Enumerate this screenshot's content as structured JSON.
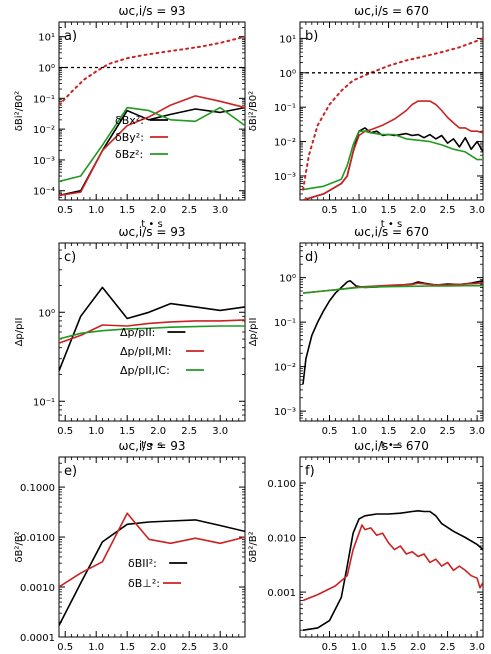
{
  "chart_data": [
    {
      "panel": "a",
      "panel_label": "a)",
      "type": "line",
      "title": "ωc,i/s = 93",
      "xlabel": "t • s",
      "ylabel": "δBi²/B0²",
      "xlim": [
        0.4,
        3.4
      ],
      "ylim": [
        5e-05,
        30
      ],
      "y_log": true,
      "xticks": [
        "0.5",
        "1.0",
        "1.5",
        "2.0",
        "2.5",
        "3.0"
      ],
      "yticks": [
        "10⁻⁴",
        "10⁻³",
        "10⁻²",
        "10⁻¹",
        "10⁰",
        "10¹"
      ],
      "legend": [
        "δBx²:",
        "δBy²:",
        "δBz²:"
      ],
      "series": [
        {
          "name": "δBx²",
          "color": "#000000",
          "x": [
            0.4,
            0.75,
            1.1,
            1.5,
            1.85,
            2.2,
            2.6,
            3.0,
            3.4
          ],
          "y": [
            7e-05,
            0.0001,
            0.002,
            0.04,
            0.02,
            0.03,
            0.045,
            0.035,
            0.05
          ]
        },
        {
          "name": "δBy²",
          "color": "#cc2222",
          "x": [
            0.4,
            0.75,
            1.1,
            1.5,
            1.85,
            2.2,
            2.6,
            3.0,
            3.4
          ],
          "y": [
            7e-05,
            9e-05,
            0.002,
            0.013,
            0.025,
            0.06,
            0.12,
            0.08,
            0.05
          ]
        },
        {
          "name": "δBz²",
          "color": "#229922",
          "x": [
            0.4,
            0.75,
            1.1,
            1.5,
            1.85,
            2.2,
            2.6,
            3.0,
            3.4
          ],
          "y": [
            0.0002,
            0.0003,
            0.003,
            0.05,
            0.04,
            0.02,
            0.018,
            0.05,
            0.013
          ]
        },
        {
          "name": "",
          "color": "#cc2222",
          "dash": "dot",
          "x": [
            0.4,
            0.6,
            0.8,
            1.0,
            1.2,
            1.5,
            1.8,
            2.1,
            2.4,
            2.7,
            3.0,
            3.4
          ],
          "y": [
            0.06,
            0.16,
            0.4,
            0.75,
            1.3,
            2.0,
            2.6,
            3.2,
            3.9,
            4.8,
            6.3,
            10
          ]
        },
        {
          "name": "",
          "color": "#000000",
          "dash": "dash",
          "x": [
            0.4,
            3.4
          ],
          "y": [
            1,
            1
          ]
        }
      ]
    },
    {
      "panel": "b",
      "panel_label": "b)",
      "type": "line",
      "title": "ωc,i/s = 670",
      "xlabel": "t • s",
      "ylabel": "δBi²/B0²",
      "xlim": [
        0.0,
        3.1
      ],
      "ylim": [
        0.0002,
        30
      ],
      "y_log": true,
      "xticks": [
        "0.5",
        "1.0",
        "1.5",
        "2.0",
        "2.5",
        "3.0"
      ],
      "yticks": [
        "10⁻³",
        "10⁻²",
        "10⁻¹",
        "10⁰",
        "10¹"
      ],
      "series": [
        {
          "name": "δBx²",
          "color": "#000000",
          "x": [
            0.05,
            0.4,
            0.7,
            0.8,
            0.9,
            1.0,
            1.1,
            1.2,
            1.3,
            1.4,
            1.5,
            1.6,
            1.7,
            1.8,
            1.9,
            2.0,
            2.1,
            2.2,
            2.3,
            2.4,
            2.5,
            2.6,
            2.7,
            2.8,
            2.9,
            3.0,
            3.1
          ],
          "y": [
            0.0002,
            0.0003,
            0.0006,
            0.001,
            0.005,
            0.02,
            0.025,
            0.018,
            0.02,
            0.015,
            0.016,
            0.015,
            0.016,
            0.017,
            0.015,
            0.016,
            0.013,
            0.016,
            0.012,
            0.015,
            0.009,
            0.012,
            0.007,
            0.013,
            0.006,
            0.01,
            0.005
          ]
        },
        {
          "name": "δBy²",
          "color": "#cc2222",
          "x": [
            0.05,
            0.4,
            0.7,
            0.8,
            0.9,
            1.0,
            1.1,
            1.2,
            1.4,
            1.6,
            1.8,
            1.9,
            2.0,
            2.2,
            2.3,
            2.4,
            2.5,
            2.6,
            2.7,
            2.8,
            2.9,
            3.0,
            3.1
          ],
          "y": [
            0.0002,
            0.0003,
            0.0006,
            0.001,
            0.005,
            0.015,
            0.02,
            0.022,
            0.03,
            0.045,
            0.08,
            0.12,
            0.15,
            0.15,
            0.12,
            0.08,
            0.05,
            0.035,
            0.025,
            0.025,
            0.02,
            0.02,
            0.018
          ]
        },
        {
          "name": "δBz²",
          "color": "#229922",
          "x": [
            0.05,
            0.4,
            0.7,
            0.8,
            0.9,
            1.0,
            1.1,
            1.2,
            1.4,
            1.6,
            1.8,
            2.0,
            2.2,
            2.4,
            2.6,
            2.8,
            3.0,
            3.1
          ],
          "y": [
            0.0004,
            0.0005,
            0.0008,
            0.002,
            0.008,
            0.02,
            0.02,
            0.018,
            0.016,
            0.016,
            0.012,
            0.011,
            0.01,
            0.008,
            0.006,
            0.005,
            0.003,
            0.003
          ]
        },
        {
          "name": "",
          "color": "#cc2222",
          "dash": "dot",
          "x": [
            0.05,
            0.15,
            0.3,
            0.5,
            0.7,
            0.9,
            1.2,
            1.5,
            1.8,
            2.1,
            2.4,
            2.7,
            3.0,
            3.1
          ],
          "y": [
            0.0004,
            0.004,
            0.03,
            0.12,
            0.3,
            0.6,
            1.0,
            1.6,
            2.3,
            3.0,
            4.0,
            5.5,
            8.5,
            10
          ]
        },
        {
          "name": "",
          "color": "#000000",
          "dash": "dash",
          "x": [
            0.0,
            3.1
          ],
          "y": [
            1,
            1
          ]
        }
      ]
    },
    {
      "panel": "c",
      "panel_label": "c)",
      "type": "line",
      "title": "ωc,i/s = 93",
      "xlabel": "t • s",
      "ylabel": "Δp/pII",
      "xlim": [
        0.4,
        3.4
      ],
      "ylim": [
        0.06,
        6
      ],
      "y_log": true,
      "xticks": [
        "0.5",
        "1.0",
        "1.5",
        "2.0",
        "2.5",
        "3.0"
      ],
      "yticks": [
        "10⁻¹",
        "10⁰"
      ],
      "legend": [
        "Δp/pII:",
        "Δp/pII,MI:",
        "Δp/pII,IC:"
      ],
      "series": [
        {
          "name": "Δp/pII",
          "color": "#000000",
          "x": [
            0.4,
            0.75,
            1.1,
            1.5,
            1.85,
            2.2,
            2.6,
            3.0,
            3.4
          ],
          "y": [
            0.22,
            0.9,
            1.9,
            0.85,
            1.0,
            1.25,
            1.15,
            1.05,
            1.15
          ]
        },
        {
          "name": "Δp/pII,MI",
          "color": "#cc2222",
          "x": [
            0.4,
            0.75,
            1.1,
            1.5,
            1.85,
            2.2,
            2.6,
            3.0,
            3.4
          ],
          "y": [
            0.45,
            0.55,
            0.72,
            0.7,
            0.75,
            0.78,
            0.8,
            0.8,
            0.82
          ]
        },
        {
          "name": "Δp/pII,IC",
          "color": "#229922",
          "x": [
            0.4,
            0.75,
            1.1,
            1.5,
            1.85,
            2.2,
            2.6,
            3.0,
            3.4
          ],
          "y": [
            0.5,
            0.58,
            0.62,
            0.65,
            0.66,
            0.68,
            0.69,
            0.7,
            0.7
          ]
        }
      ]
    },
    {
      "panel": "d",
      "panel_label": "d)",
      "type": "line",
      "title": "ωc,i/s = 670",
      "xlabel": "t • s",
      "ylabel": "Δp/pII",
      "xlim": [
        0.0,
        3.1
      ],
      "ylim": [
        0.0006,
        6
      ],
      "y_log": true,
      "xticks": [
        "0.5",
        "1.0",
        "1.5",
        "2.0",
        "2.5",
        "3.0"
      ],
      "yticks": [
        "10⁻³",
        "10⁻²",
        "10⁻¹",
        "10⁰"
      ],
      "series": [
        {
          "name": "Δp/pII",
          "color": "#000000",
          "x": [
            0.05,
            0.1,
            0.2,
            0.3,
            0.4,
            0.5,
            0.6,
            0.7,
            0.8,
            0.85,
            0.95,
            1.1,
            1.3,
            1.5,
            1.7,
            1.9,
            2.0,
            2.1,
            2.3,
            2.5,
            2.7,
            2.9,
            3.0,
            3.1
          ],
          "y": [
            0.004,
            0.015,
            0.05,
            0.1,
            0.18,
            0.3,
            0.45,
            0.6,
            0.8,
            0.85,
            0.65,
            0.6,
            0.62,
            0.65,
            0.68,
            0.72,
            0.8,
            0.75,
            0.68,
            0.72,
            0.7,
            0.75,
            0.8,
            0.85
          ]
        },
        {
          "name": "Δp/pII,MI",
          "color": "#cc2222",
          "x": [
            0.05,
            0.4,
            0.7,
            1.0,
            1.3,
            1.6,
            1.9,
            2.0,
            2.2,
            2.5,
            2.8,
            3.1
          ],
          "y": [
            0.45,
            0.5,
            0.55,
            0.62,
            0.65,
            0.68,
            0.7,
            0.75,
            0.7,
            0.68,
            0.72,
            0.75
          ]
        },
        {
          "name": "Δp/pII,IC",
          "color": "#229922",
          "x": [
            0.05,
            0.4,
            0.7,
            1.0,
            1.3,
            1.6,
            1.9,
            2.2,
            2.5,
            2.8,
            3.1
          ],
          "y": [
            0.45,
            0.5,
            0.55,
            0.6,
            0.62,
            0.63,
            0.64,
            0.65,
            0.65,
            0.66,
            0.66
          ]
        }
      ]
    },
    {
      "panel": "e",
      "panel_label": "e)",
      "type": "line",
      "title": "ωc,i/s = 93",
      "xlabel": "t • s",
      "ylabel": "δB²/B²",
      "xlim": [
        0.4,
        3.4
      ],
      "ylim": [
        0.0001,
        0.4
      ],
      "y_log": true,
      "xticks": [
        "0.5",
        "1.0",
        "1.5",
        "2.0",
        "2.5",
        "3.0"
      ],
      "yticks": [
        "0.0001",
        "0.0010",
        "0.0100",
        "0.1000"
      ],
      "legend": [
        "δBII²:",
        "δB⊥²:"
      ],
      "series": [
        {
          "name": "δBII²",
          "color": "#000000",
          "x": [
            0.4,
            0.75,
            1.1,
            1.5,
            1.85,
            2.2,
            2.6,
            3.0,
            3.4
          ],
          "y": [
            0.00017,
            0.0012,
            0.008,
            0.018,
            0.02,
            0.021,
            0.022,
            0.017,
            0.013
          ]
        },
        {
          "name": "δB⊥²",
          "color": "#cc2222",
          "x": [
            0.4,
            0.75,
            1.1,
            1.5,
            1.85,
            2.2,
            2.6,
            3.0,
            3.4
          ],
          "y": [
            0.001,
            0.0019,
            0.0032,
            0.03,
            0.009,
            0.0075,
            0.0095,
            0.0075,
            0.01
          ]
        }
      ]
    },
    {
      "panel": "f",
      "panel_label": "f)",
      "type": "line",
      "title": "ωc,i/s = 670",
      "xlabel": "t • s",
      "ylabel": "δB²/B²",
      "xlim": [
        0.0,
        3.1
      ],
      "ylim": [
        0.00015,
        0.3
      ],
      "y_log": true,
      "xticks": [
        "0.5",
        "1.0",
        "1.5",
        "2.0",
        "2.5",
        "3.0"
      ],
      "yticks": [
        "0.001",
        "0.010",
        "0.100"
      ],
      "series": [
        {
          "name": "δBII²",
          "color": "#000000",
          "x": [
            0.05,
            0.3,
            0.5,
            0.7,
            0.8,
            0.9,
            1.0,
            1.1,
            1.3,
            1.5,
            1.7,
            1.9,
            2.0,
            2.1,
            2.2,
            2.3,
            2.4,
            2.6,
            2.8,
            3.0,
            3.1
          ],
          "y": [
            0.0002,
            0.00022,
            0.0003,
            0.0008,
            0.003,
            0.012,
            0.022,
            0.025,
            0.027,
            0.027,
            0.028,
            0.03,
            0.031,
            0.03,
            0.03,
            0.025,
            0.018,
            0.013,
            0.01,
            0.0075,
            0.006
          ]
        },
        {
          "name": "δB⊥²",
          "color": "#cc2222",
          "x": [
            0.05,
            0.3,
            0.6,
            0.8,
            0.9,
            1.0,
            1.05,
            1.1,
            1.2,
            1.3,
            1.4,
            1.5,
            1.6,
            1.7,
            1.8,
            1.9,
            2.0,
            2.1,
            2.2,
            2.3,
            2.4,
            2.5,
            2.6,
            2.7,
            2.8,
            2.9,
            3.0,
            3.05,
            3.1
          ],
          "y": [
            0.0007,
            0.0009,
            0.0013,
            0.002,
            0.006,
            0.012,
            0.017,
            0.014,
            0.015,
            0.011,
            0.012,
            0.008,
            0.006,
            0.007,
            0.005,
            0.0055,
            0.0045,
            0.005,
            0.0035,
            0.004,
            0.003,
            0.0035,
            0.0025,
            0.003,
            0.0025,
            0.002,
            0.0018,
            0.0012,
            0.0015
          ]
        }
      ]
    }
  ]
}
